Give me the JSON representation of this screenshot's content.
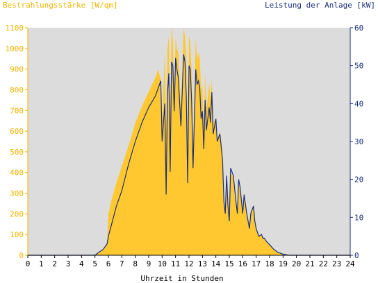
{
  "chart_data": {
    "type": "area",
    "title_left": "Bestrahlungsstärke [W/qm]",
    "title_right": "Leistung der Anlage [kW]",
    "xlabel": "Uhrzeit in Stunden",
    "xlim": [
      0,
      24
    ],
    "ylim_left": [
      0,
      1100
    ],
    "ylim_right": [
      0,
      60
    ],
    "x_ticks": [
      0,
      1,
      2,
      3,
      4,
      5,
      6,
      7,
      8,
      9,
      10,
      11,
      12,
      13,
      14,
      15,
      16,
      17,
      18,
      19,
      20,
      21,
      22,
      23,
      24
    ],
    "y_left_ticks": [
      0,
      100,
      200,
      300,
      400,
      500,
      600,
      700,
      800,
      900,
      1000,
      1100
    ],
    "y_right_ticks": [
      0,
      10,
      20,
      30,
      40,
      50,
      60
    ],
    "grid": false,
    "series": [
      {
        "name": "Bestrahlungsstärke [W/qm]",
        "axis": "left",
        "color": "#ffc830",
        "x": [
          0,
          5.0,
          5.3,
          5.6,
          5.9,
          6.0,
          6.2,
          6.5,
          7.0,
          7.5,
          8.0,
          8.5,
          9.0,
          9.5,
          9.7,
          9.9,
          10.0,
          10.2,
          10.3,
          10.4,
          10.5,
          10.6,
          10.7,
          10.8,
          10.9,
          11.0,
          11.1,
          11.2,
          11.4,
          11.6,
          11.7,
          11.8,
          11.9,
          12.0,
          12.1,
          12.2,
          12.3,
          12.5,
          12.6,
          12.7,
          12.8,
          12.9,
          13.0,
          13.1,
          13.2,
          13.3,
          13.5,
          13.6,
          13.7,
          13.8,
          14.0,
          14.1,
          14.3,
          14.5,
          14.6,
          14.7,
          14.8,
          14.9,
          15.0,
          15.1,
          15.3,
          15.5,
          15.6,
          15.7,
          15.8,
          16.0,
          16.1,
          16.3,
          16.5,
          16.6,
          16.8,
          16.9,
          17.0,
          17.2,
          17.4,
          17.5,
          17.6,
          17.8,
          18.0,
          18.3,
          18.6,
          19.0,
          19.4,
          19.8,
          20.0,
          24.0
        ],
        "values": [
          0,
          0,
          15,
          30,
          60,
          200,
          260,
          330,
          430,
          530,
          640,
          720,
          790,
          860,
          900,
          850,
          650,
          980,
          600,
          1000,
          1060,
          620,
          1100,
          1040,
          750,
          1050,
          1000,
          980,
          700,
          1100,
          1060,
          950,
          400,
          1060,
          1030,
          880,
          500,
          1050,
          950,
          980,
          950,
          800,
          820,
          600,
          880,
          700,
          830,
          760,
          850,
          640,
          660,
          560,
          600,
          500,
          270,
          200,
          380,
          250,
          160,
          400,
          380,
          250,
          200,
          360,
          330,
          200,
          300,
          210,
          120,
          210,
          240,
          170,
          130,
          90,
          100,
          80,
          80,
          60,
          50,
          30,
          15,
          5,
          0,
          0,
          0,
          0
        ]
      },
      {
        "name": "Leistung der Anlage [kW]",
        "axis": "right",
        "color": "#1a2e7a",
        "x": [
          0,
          5.0,
          5.3,
          5.6,
          5.9,
          6.0,
          6.3,
          6.6,
          7.0,
          7.5,
          8.0,
          8.5,
          9.0,
          9.5,
          9.7,
          9.9,
          10.0,
          10.2,
          10.3,
          10.4,
          10.5,
          10.6,
          10.7,
          10.8,
          10.9,
          11.0,
          11.1,
          11.2,
          11.4,
          11.6,
          11.7,
          11.8,
          11.9,
          12.0,
          12.1,
          12.2,
          12.3,
          12.5,
          12.6,
          12.7,
          12.8,
          12.9,
          13.0,
          13.1,
          13.2,
          13.3,
          13.5,
          13.6,
          13.7,
          13.8,
          14.0,
          14.1,
          14.3,
          14.5,
          14.6,
          14.7,
          14.8,
          14.9,
          15.0,
          15.1,
          15.3,
          15.5,
          15.6,
          15.7,
          15.8,
          16.0,
          16.1,
          16.3,
          16.5,
          16.6,
          16.8,
          16.9,
          17.0,
          17.2,
          17.4,
          17.5,
          17.6,
          17.8,
          18.0,
          18.3,
          18.6,
          19.0,
          19.4,
          19.8,
          20.0,
          24.0
        ],
        "values": [
          0,
          0,
          0.8,
          1.5,
          3,
          5,
          9,
          13,
          17,
          24,
          30,
          35,
          39,
          42,
          44,
          46,
          30,
          40,
          16,
          43,
          48,
          22,
          51,
          50,
          38,
          52,
          49,
          47,
          34,
          53,
          51,
          42,
          19,
          50,
          49,
          40,
          23,
          49,
          45,
          46,
          44,
          36,
          38,
          28,
          41,
          33,
          39,
          35,
          43,
          32,
          36,
          30,
          32,
          25,
          14,
          11,
          21,
          13,
          9,
          23,
          21,
          14,
          11,
          20,
          18,
          11,
          16,
          11,
          7,
          11,
          13,
          9,
          7,
          5,
          5.5,
          4.5,
          4.5,
          3.5,
          2.8,
          1.6,
          0.8,
          0.3,
          0,
          0,
          0,
          0
        ]
      }
    ]
  }
}
